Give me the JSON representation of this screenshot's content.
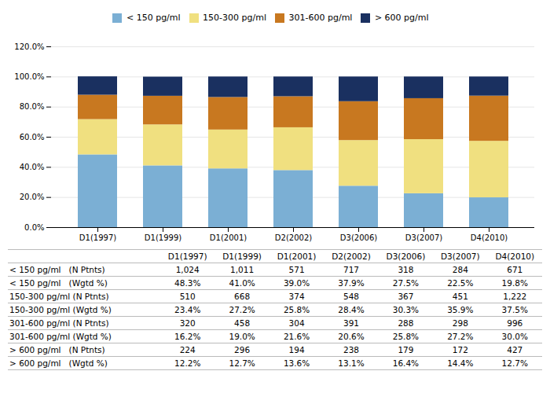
{
  "chart_data": {
    "type": "bar",
    "stacked": true,
    "categories": [
      "D1(1997)",
      "D1(1999)",
      "D1(2001)",
      "D2(2002)",
      "D3(2006)",
      "D3(2007)",
      "D4(2010)"
    ],
    "series": [
      {
        "name": "< 150 pg/ml",
        "color": "#7bafd4",
        "values": [
          48.3,
          41.0,
          39.0,
          37.9,
          27.5,
          22.5,
          19.8
        ]
      },
      {
        "name": "150-300 pg/ml",
        "color": "#f0e080",
        "values": [
          23.4,
          27.2,
          25.8,
          28.4,
          30.3,
          35.9,
          37.5
        ]
      },
      {
        "name": "301-600 pg/ml",
        "color": "#c87820",
        "values": [
          16.2,
          19.0,
          21.6,
          20.6,
          25.8,
          27.2,
          30.0
        ]
      },
      {
        "name": "> 600 pg/ml",
        "color": "#1a3060",
        "values": [
          12.2,
          12.7,
          13.6,
          13.1,
          16.4,
          14.4,
          12.7
        ]
      }
    ],
    "ylim": [
      0,
      120
    ],
    "yticks": [
      {
        "value": 0,
        "label": "0.0%"
      },
      {
        "value": 20,
        "label": "20.0%"
      },
      {
        "value": 40,
        "label": "40.0%"
      },
      {
        "value": 60,
        "label": "60.0%"
      },
      {
        "value": 80,
        "label": "80.0%"
      },
      {
        "value": 100,
        "label": "100.0%"
      },
      {
        "value": 120,
        "label": "120.0%"
      }
    ],
    "grid": true,
    "legend": "top",
    "table": {
      "row_labels": [
        "< 150 pg/ml   (N Ptnts)",
        "< 150 pg/ml   (Wgtd %)",
        "150-300 pg/ml (N Ptnts)",
        "150-300 pg/ml (Wgtd %)",
        "301-600 pg/ml (N Ptnts)",
        "301-600 pg/ml (Wgtd %)",
        "> 600 pg/ml   (N Ptnts)",
        "> 600 pg/ml   (Wgtd %)"
      ],
      "values": [
        [
          "1,024",
          "1,011",
          "571",
          "717",
          "318",
          "284",
          "671"
        ],
        [
          "48.3%",
          "41.0%",
          "39.0%",
          "37.9%",
          "27.5%",
          "22.5%",
          "19.8%"
        ],
        [
          "510",
          "668",
          "374",
          "548",
          "367",
          "451",
          "1,222"
        ],
        [
          "23.4%",
          "27.2%",
          "25.8%",
          "28.4%",
          "30.3%",
          "35.9%",
          "37.5%"
        ],
        [
          "320",
          "458",
          "304",
          "391",
          "288",
          "298",
          "996"
        ],
        [
          "16.2%",
          "19.0%",
          "21.6%",
          "20.6%",
          "25.8%",
          "27.2%",
          "30.0%"
        ],
        [
          "224",
          "296",
          "194",
          "238",
          "179",
          "172",
          "427"
        ],
        [
          "12.2%",
          "12.7%",
          "13.6%",
          "13.1%",
          "16.4%",
          "14.4%",
          "12.7%"
        ]
      ]
    }
  }
}
